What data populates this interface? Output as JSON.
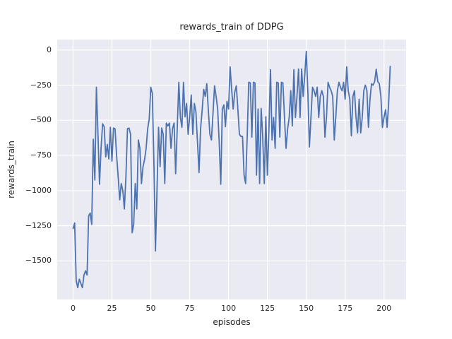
{
  "figure": {
    "title": "rewards_train of DDPG",
    "xlabel": "episodes",
    "ylabel": "rewards_train"
  },
  "chart_data": {
    "type": "line",
    "title": "rewards_train of DDPG",
    "xlabel": "episodes",
    "ylabel": "rewards_train",
    "legend": false,
    "grid": true,
    "style": "seaborn-darkgrid",
    "axes_background": "#eaeaf2",
    "grid_color": "#ffffff",
    "line_color": "#4c72b0",
    "x_ticks": [
      0,
      25,
      50,
      75,
      100,
      125,
      150,
      175,
      200
    ],
    "y_ticks": [
      0,
      -250,
      -500,
      -750,
      -1000,
      -1250,
      -1500
    ],
    "xlim": [
      -10.2,
      214.2
    ],
    "ylim": [
      -1774,
      74
    ],
    "series": [
      {
        "name": "rewards_train",
        "x_start": 0,
        "x_step": 1,
        "y": [
          -1270,
          -1230,
          -1640,
          -1690,
          -1630,
          -1660,
          -1690,
          -1600,
          -1570,
          -1600,
          -1180,
          -1160,
          -1240,
          -635,
          -925,
          -265,
          -600,
          -955,
          -700,
          -525,
          -545,
          -760,
          -671,
          -775,
          -550,
          -790,
          -555,
          -560,
          -750,
          -900,
          -1066,
          -950,
          -1000,
          -1130,
          -900,
          -560,
          -555,
          -600,
          -1300,
          -1240,
          -950,
          -1130,
          -640,
          -700,
          -950,
          -830,
          -780,
          -700,
          -560,
          -490,
          -265,
          -310,
          -790,
          -1430,
          -1000,
          -550,
          -830,
          -555,
          -600,
          -950,
          -520,
          -540,
          -520,
          -700,
          -560,
          -520,
          -880,
          -550,
          -230,
          -480,
          -550,
          -230,
          -475,
          -380,
          -600,
          -475,
          -320,
          -600,
          -380,
          -440,
          -650,
          -872,
          -560,
          -430,
          -280,
          -330,
          -240,
          -430,
          -600,
          -640,
          -450,
          -255,
          -330,
          -420,
          -660,
          -955,
          -420,
          -390,
          -545,
          -365,
          -420,
          -120,
          -280,
          -420,
          -300,
          -255,
          -420,
          -600,
          -615,
          -615,
          -890,
          -950,
          -620,
          -230,
          -235,
          -620,
          -230,
          -235,
          -890,
          -420,
          -950,
          -415,
          -620,
          -950,
          -475,
          -890,
          -560,
          -140,
          -640,
          -480,
          -700,
          -230,
          -235,
          -620,
          -230,
          -235,
          -480,
          -700,
          -560,
          -480,
          -290,
          -540,
          -140,
          -480,
          -330,
          -135,
          -480,
          -135,
          -330,
          -180,
          -10,
          -300,
          -690,
          -480,
          -265,
          -290,
          -330,
          -265,
          -480,
          -330,
          -290,
          -330,
          -620,
          -475,
          -230,
          -265,
          -290,
          -330,
          -640,
          -475,
          -290,
          -230,
          -265,
          -290,
          -230,
          -350,
          -120,
          -290,
          -350,
          -610,
          -330,
          -290,
          -480,
          -590,
          -350,
          -590,
          -480,
          -290,
          -250,
          -290,
          -550,
          -350,
          -240,
          -250,
          -225,
          -137,
          -225,
          -240,
          -330,
          -551,
          -480,
          -425,
          -550,
          -380,
          -117
        ]
      }
    ]
  }
}
